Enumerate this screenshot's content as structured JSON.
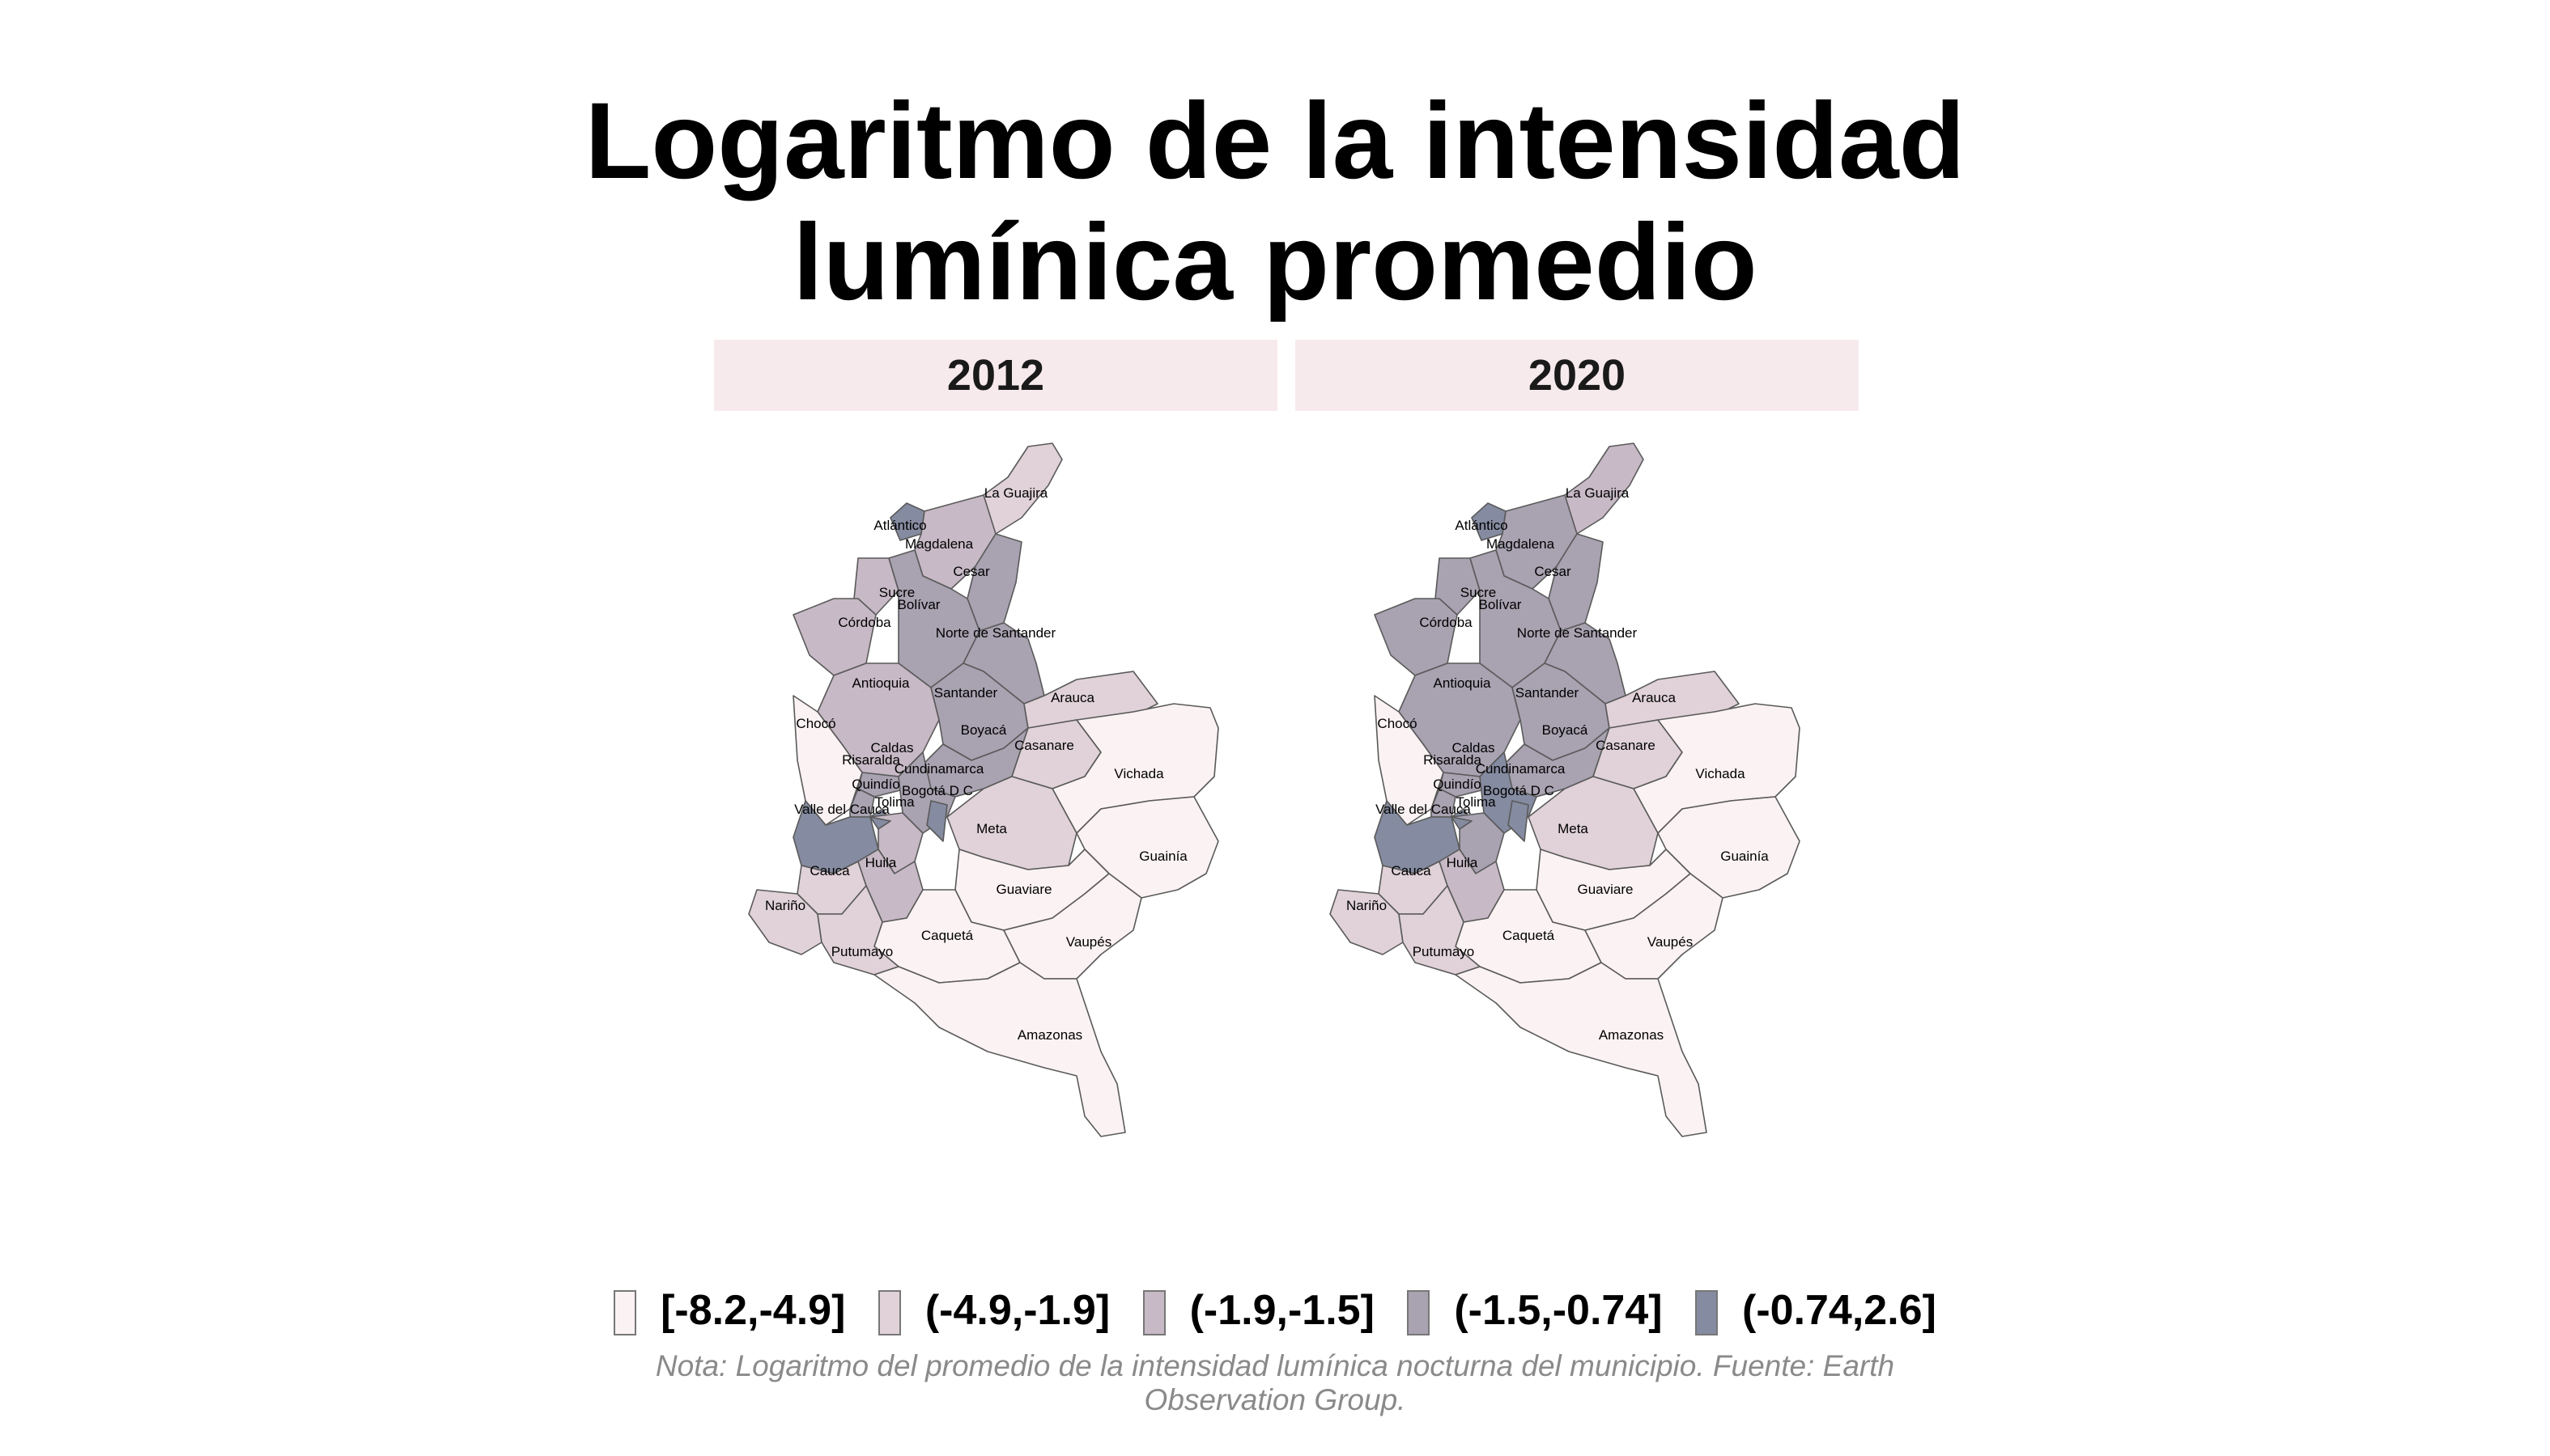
{
  "title_line1": "Logaritmo de la intensidad",
  "title_line2": "lumínica promedio",
  "panels": [
    "2012",
    "2020"
  ],
  "legend": [
    {
      "label": "[-8.2,-4.9]",
      "color": "#fbf2f3"
    },
    {
      "label": "(-4.9,-1.9]",
      "color": "#e0d2d8"
    },
    {
      "label": "(-1.9,-1.5]",
      "color": "#c7b9c5"
    },
    {
      "label": "(-1.5,-0.74]",
      "color": "#a8a2b1"
    },
    {
      "label": "(-0.74,2.6]",
      "color": "#858ba0"
    }
  ],
  "note": "Nota: Logaritmo del promedio de la intensidad lumínica nocturna del municipio. Fuente: Earth Observation Group.",
  "departments": [
    {
      "name": "La Guajira",
      "class_2012": 2,
      "class_2020": 3
    },
    {
      "name": "Atlántico",
      "class_2012": 5,
      "class_2020": 5
    },
    {
      "name": "Magdalena",
      "class_2012": 3,
      "class_2020": 4
    },
    {
      "name": "Cesar",
      "class_2012": 4,
      "class_2020": 4
    },
    {
      "name": "Sucre",
      "class_2012": 3,
      "class_2020": 4
    },
    {
      "name": "Bolívar",
      "class_2012": 4,
      "class_2020": 4
    },
    {
      "name": "Córdoba",
      "class_2012": 3,
      "class_2020": 4
    },
    {
      "name": "Norte de Santander",
      "class_2012": 4,
      "class_2020": 4
    },
    {
      "name": "Antioquia",
      "class_2012": 3,
      "class_2020": 4
    },
    {
      "name": "Santander",
      "class_2012": 4,
      "class_2020": 4
    },
    {
      "name": "Arauca",
      "class_2012": 2,
      "class_2020": 2
    },
    {
      "name": "Chocó",
      "class_2012": 1,
      "class_2020": 1
    },
    {
      "name": "Caldas",
      "class_2012": 4,
      "class_2020": 4
    },
    {
      "name": "Risaralda",
      "class_2012": 4,
      "class_2020": 4
    },
    {
      "name": "Boyacá",
      "class_2012": 4,
      "class_2020": 4
    },
    {
      "name": "Casanare",
      "class_2012": 2,
      "class_2020": 2
    },
    {
      "name": "Cundinamarca",
      "class_2012": 4,
      "class_2020": 5
    },
    {
      "name": "Quindío",
      "class_2012": 5,
      "class_2020": 5
    },
    {
      "name": "Bogotá D C",
      "class_2012": 5,
      "class_2020": 5
    },
    {
      "name": "Tolima",
      "class_2012": 3,
      "class_2020": 4
    },
    {
      "name": "Vichada",
      "class_2012": 1,
      "class_2020": 1
    },
    {
      "name": "Valle del Cauca",
      "class_2012": 5,
      "class_2020": 5
    },
    {
      "name": "Meta",
      "class_2012": 2,
      "class_2020": 2
    },
    {
      "name": "Guainía",
      "class_2012": 1,
      "class_2020": 1
    },
    {
      "name": "Cauca",
      "class_2012": 2,
      "class_2020": 2
    },
    {
      "name": "Huila",
      "class_2012": 3,
      "class_2020": 3
    },
    {
      "name": "Guaviare",
      "class_2012": 1,
      "class_2020": 1
    },
    {
      "name": "Nariño",
      "class_2012": 2,
      "class_2020": 2
    },
    {
      "name": "Caquetá",
      "class_2012": 1,
      "class_2020": 1
    },
    {
      "name": "Vaupés",
      "class_2012": 1,
      "class_2020": 1
    },
    {
      "name": "Putumayo",
      "class_2012": 2,
      "class_2020": 2
    },
    {
      "name": "Amazonas",
      "class_2012": 1,
      "class_2020": 1
    }
  ]
}
